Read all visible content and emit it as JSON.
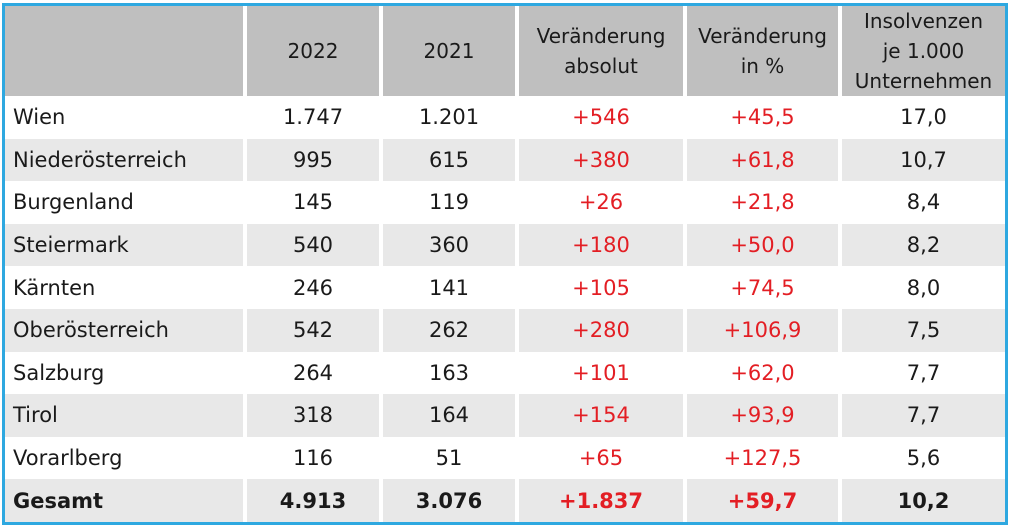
{
  "chart_data": {
    "type": "table",
    "columns": [
      "",
      "2022",
      "2021",
      "Veränderung absolut",
      "Veränderung in %",
      "Insolvenzen je 1.000 Unternehmen"
    ],
    "header_lines": [
      [
        ""
      ],
      [
        "2022"
      ],
      [
        "2021"
      ],
      [
        "Veränderung",
        "absolut"
      ],
      [
        "Veränderung",
        "in %"
      ],
      [
        "Insolvenzen",
        "je 1.000",
        "Unternehmen"
      ]
    ],
    "rows": [
      {
        "region": "Wien",
        "y2022": "1.747",
        "y2021": "1.201",
        "abs": "+546",
        "pct": "+45,5",
        "per1000": "17,0"
      },
      {
        "region": "Niederösterreich",
        "y2022": "995",
        "y2021": "615",
        "abs": "+380",
        "pct": "+61,8",
        "per1000": "10,7"
      },
      {
        "region": "Burgenland",
        "y2022": "145",
        "y2021": "119",
        "abs": "+26",
        "pct": "+21,8",
        "per1000": "8,4"
      },
      {
        "region": "Steiermark",
        "y2022": "540",
        "y2021": "360",
        "abs": "+180",
        "pct": "+50,0",
        "per1000": "8,2"
      },
      {
        "region": "Kärnten",
        "y2022": "246",
        "y2021": "141",
        "abs": "+105",
        "pct": "+74,5",
        "per1000": "8,0"
      },
      {
        "region": "Oberösterreich",
        "y2022": "542",
        "y2021": "262",
        "abs": "+280",
        "pct": "+106,9",
        "per1000": "7,5"
      },
      {
        "region": "Salzburg",
        "y2022": "264",
        "y2021": "163",
        "abs": "+101",
        "pct": "+62,0",
        "per1000": "7,7"
      },
      {
        "region": "Tirol",
        "y2022": "318",
        "y2021": "164",
        "abs": "+154",
        "pct": "+93,9",
        "per1000": "7,7"
      },
      {
        "region": "Vorarlberg",
        "y2022": "116",
        "y2021": "51",
        "abs": "+65",
        "pct": "+127,5",
        "per1000": "5,6"
      }
    ],
    "total": {
      "region": "Gesamt",
      "y2022": "4.913",
      "y2021": "3.076",
      "abs": "+1.837",
      "pct": "+59,7",
      "per1000": "10,2"
    }
  },
  "colors": {
    "border": "#2ea8e0",
    "header_bg": "#bfbfbf",
    "stripe_bg": "#e8e8e8",
    "change_text": "#e31e24"
  }
}
